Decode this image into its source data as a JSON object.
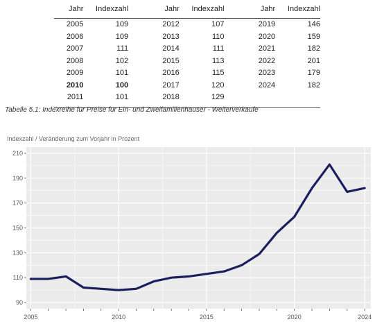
{
  "table": {
    "headers": [
      "Jahr",
      "Indexzahl",
      "Jahr",
      "Indexzahl",
      "Jahr",
      "Indexzahl"
    ],
    "rows": [
      [
        {
          "y": "2005",
          "v": "109"
        },
        {
          "y": "2012",
          "v": "107"
        },
        {
          "y": "2019",
          "v": "146"
        }
      ],
      [
        {
          "y": "2006",
          "v": "109"
        },
        {
          "y": "2013",
          "v": "110"
        },
        {
          "y": "2020",
          "v": "159"
        }
      ],
      [
        {
          "y": "2007",
          "v": "111"
        },
        {
          "y": "2014",
          "v": "111"
        },
        {
          "y": "2021",
          "v": "182"
        }
      ],
      [
        {
          "y": "2008",
          "v": "102"
        },
        {
          "y": "2015",
          "v": "113"
        },
        {
          "y": "2022",
          "v": "201"
        }
      ],
      [
        {
          "y": "2009",
          "v": "101"
        },
        {
          "y": "2016",
          "v": "115"
        },
        {
          "y": "2023",
          "v": "179"
        }
      ],
      [
        {
          "y": "2010",
          "v": "100",
          "bold": true
        },
        {
          "y": "2017",
          "v": "120"
        },
        {
          "y": "2024",
          "v": "182"
        }
      ],
      [
        {
          "y": "2011",
          "v": "101"
        },
        {
          "y": "2018",
          "v": "129"
        },
        {
          "y": "",
          "v": ""
        }
      ]
    ],
    "caption": "Tabelle 5.1: Indexreihe für Preise für Ein- und Zweifamilienhäuser - Weiterverkäufe"
  },
  "chart_data": {
    "type": "line",
    "title": "Indexzahl / Veränderung zum Vorjahr in Prozent",
    "x": [
      2005,
      2006,
      2007,
      2008,
      2009,
      2010,
      2011,
      2012,
      2013,
      2014,
      2015,
      2016,
      2017,
      2018,
      2019,
      2020,
      2021,
      2022,
      2023,
      2024
    ],
    "series": [
      {
        "values": [
          109,
          109,
          111,
          102,
          101,
          100,
          101,
          107,
          110,
          111,
          113,
          115,
          120,
          129,
          146,
          159,
          182,
          201,
          179,
          182
        ]
      }
    ],
    "xlim": [
      2004.75,
      2024.35
    ],
    "ylim": [
      85,
      215
    ],
    "x_ticks": [
      2005,
      2010,
      2015,
      2020,
      2024
    ],
    "y_ticks": [
      90,
      110,
      130,
      150,
      170,
      190,
      210
    ],
    "grid": true,
    "line_color": "#1c1f5e",
    "panel_color": "#ebebeb",
    "grid_color": "#ffffff"
  }
}
